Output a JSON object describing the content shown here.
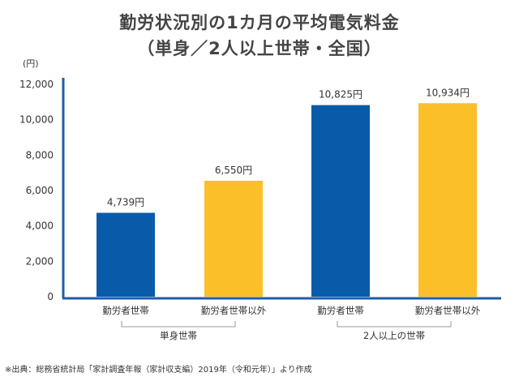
{
  "chart_data": {
    "type": "bar",
    "title": "勤労状況別の1カ月の平均電気料金",
    "subtitle": "（単身／2人以上世帯・全国）",
    "ylabel": "(円)",
    "ylim": [
      0,
      12000
    ],
    "yticks": [
      "0",
      "2,000",
      "4,000",
      "6,000",
      "8,000",
      "10,000",
      "12,000"
    ],
    "categories": [
      "勤労者世帯",
      "勤労者世帯以外",
      "勤労者世帯",
      "勤労者世帯以外"
    ],
    "values": [
      4739,
      6550,
      10825,
      10934
    ],
    "value_labels": [
      "4,739円",
      "6,550円",
      "10,825円",
      "10,934円"
    ],
    "groups": [
      "単身世帯",
      "2人以上の世帯"
    ],
    "colors": [
      "#0a5aaa",
      "#fbbf2a",
      "#0a5aaa",
      "#fbbf2a"
    ],
    "axis_color": "#1f5ca8",
    "grid": false
  },
  "source": "※出典：総務省統計局「家計調査年報（家計収支編）2019年（令和元年）」より作成"
}
